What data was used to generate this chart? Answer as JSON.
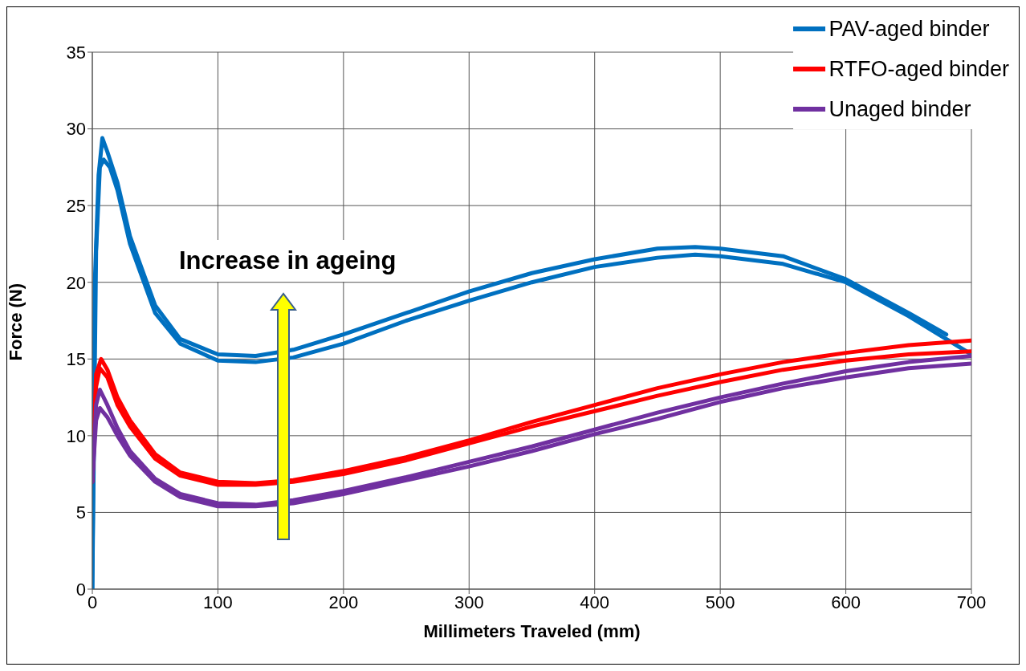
{
  "chart_data": {
    "type": "line",
    "xlabel": "Millimeters Traveled (mm)",
    "ylabel": "Force (N)",
    "xlim": [
      0,
      700
    ],
    "xticks": [
      0,
      100,
      200,
      300,
      400,
      500,
      600,
      700
    ],
    "ylim": [
      0,
      35
    ],
    "yticks": [
      0,
      5,
      10,
      15,
      20,
      25,
      30,
      35
    ],
    "grid": true,
    "legend": "top right",
    "marker": "none",
    "line_style": "solid",
    "annotations": [
      "Increase in ageing"
    ],
    "series": [
      {
        "name": "PAV-aged binder",
        "color": "#0070c0",
        "x": [
          0,
          2,
          5,
          8,
          12,
          20,
          30,
          50,
          70,
          100,
          130,
          160,
          200,
          250,
          300,
          350,
          400,
          450,
          480,
          500,
          550,
          600,
          650,
          680
        ],
        "values": [
          0,
          20,
          27,
          29.4,
          28.5,
          26.5,
          23,
          18.5,
          16.3,
          15.3,
          15.2,
          15.6,
          16.6,
          18,
          19.4,
          20.6,
          21.5,
          22.2,
          22.3,
          22.2,
          21.7,
          20.2,
          18,
          16.6
        ]
      },
      {
        "color": "#0070c0",
        "x": [
          0,
          3,
          6,
          9,
          14,
          20,
          30,
          50,
          70,
          100,
          130,
          160,
          200,
          250,
          300,
          350,
          400,
          450,
          480,
          500,
          550,
          600,
          650,
          700
        ],
        "values": [
          0,
          22,
          27.5,
          28,
          27.5,
          26,
          22.5,
          18,
          16,
          14.9,
          14.8,
          15.1,
          16,
          17.5,
          18.8,
          20,
          21,
          21.6,
          21.8,
          21.7,
          21.2,
          20,
          17.8,
          15.3
        ]
      },
      {
        "name": "RTFO-aged binder",
        "color": "#ff0000",
        "x": [
          0,
          3,
          7,
          12,
          20,
          30,
          50,
          70,
          100,
          130,
          160,
          200,
          250,
          300,
          350,
          400,
          450,
          500,
          550,
          600,
          650,
          700
        ],
        "values": [
          7,
          14,
          15,
          14.3,
          12.5,
          11,
          8.8,
          7.6,
          7,
          6.9,
          7.1,
          7.7,
          8.6,
          9.7,
          10.9,
          12,
          13.1,
          14,
          14.8,
          15.4,
          15.9,
          16.2
        ]
      },
      {
        "color": "#ff0000",
        "x": [
          0,
          3,
          6,
          12,
          20,
          30,
          50,
          70,
          100,
          130,
          160,
          200,
          250,
          300,
          350,
          400,
          450,
          500,
          550,
          600,
          650,
          700
        ],
        "values": [
          7,
          13.2,
          14.4,
          13.8,
          12,
          10.6,
          8.5,
          7.4,
          6.8,
          6.8,
          7,
          7.5,
          8.4,
          9.5,
          10.6,
          11.6,
          12.6,
          13.5,
          14.3,
          14.9,
          15.3,
          15.5
        ]
      },
      {
        "name": "Unaged binder",
        "color": "#7030a0",
        "x": [
          0,
          3,
          6,
          12,
          20,
          30,
          50,
          70,
          100,
          130,
          160,
          200,
          250,
          300,
          350,
          400,
          450,
          500,
          550,
          600,
          650,
          700
        ],
        "values": [
          7,
          12,
          13,
          12,
          10.5,
          9,
          7.2,
          6.2,
          5.6,
          5.5,
          5.8,
          6.4,
          7.3,
          8.3,
          9.3,
          10.4,
          11.5,
          12.5,
          13.4,
          14.2,
          14.8,
          15.2
        ]
      },
      {
        "color": "#7030a0",
        "x": [
          0,
          3,
          6,
          12,
          20,
          30,
          50,
          70,
          100,
          130,
          160,
          200,
          250,
          300,
          350,
          400,
          450,
          500,
          550,
          600,
          650,
          700
        ],
        "values": [
          7,
          11,
          11.8,
          11.2,
          10,
          8.7,
          7,
          6,
          5.4,
          5.4,
          5.6,
          6.2,
          7.1,
          8,
          9,
          10.1,
          11.1,
          12.2,
          13.1,
          13.8,
          14.4,
          14.7
        ]
      }
    ]
  }
}
